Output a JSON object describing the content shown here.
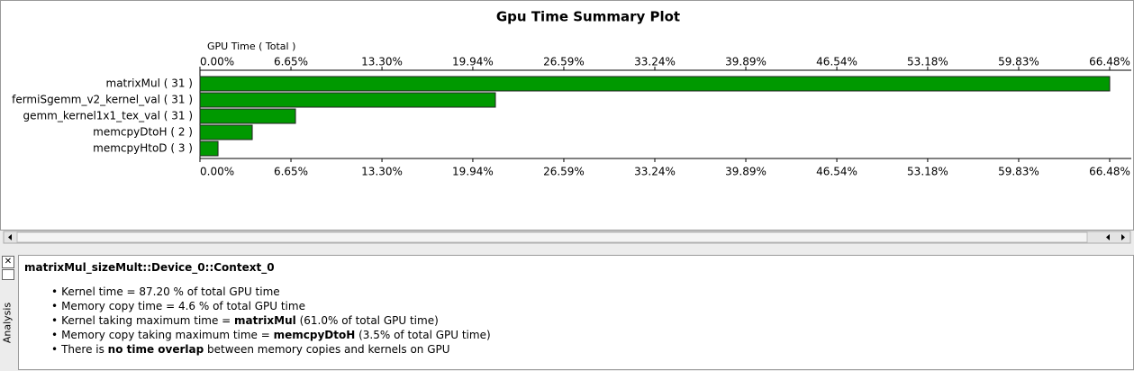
{
  "chart_data": {
    "type": "bar",
    "orientation": "horizontal",
    "title": "Gpu Time Summary Plot",
    "x_label": "GPU Time ( Total )",
    "categories": [
      "matrixMul ( 31 )",
      "fermiSgemm_v2_kernel_val ( 31 )",
      "gemm_kernel1x1_tex_val ( 31 )",
      "memcpyDtoH ( 2 )",
      "memcpyHtoD ( 3 )"
    ],
    "values": [
      66.48,
      21.59,
      6.98,
      3.82,
      1.32
    ],
    "color": "#009900",
    "xlim": [
      0,
      66.48
    ],
    "xticks": [
      {
        "value": 0,
        "label": "0.00%"
      },
      {
        "value": 6.65,
        "label": "6.65%"
      },
      {
        "value": 13.3,
        "label": "13.30%"
      },
      {
        "value": 19.94,
        "label": "19.94%"
      },
      {
        "value": 26.59,
        "label": "26.59%"
      },
      {
        "value": 33.24,
        "label": "33.24%"
      },
      {
        "value": 39.89,
        "label": "39.89%"
      },
      {
        "value": 46.54,
        "label": "46.54%"
      },
      {
        "value": 53.18,
        "label": "53.18%"
      },
      {
        "value": 59.83,
        "label": "59.83%"
      },
      {
        "value": 66.48,
        "label": "66.48%"
      }
    ],
    "grid": false
  },
  "analysis": {
    "tab": "Analysis",
    "title": "matrixMul_sizeMult::Device_0::Context_0",
    "bullets": [
      [
        "Kernel time = 87.20 % of total GPU time"
      ],
      [
        "Memory copy time = 4.6 % of total GPU time"
      ],
      [
        "Kernel taking maximum time = ",
        "matrixMul",
        " (61.0% of total GPU time)"
      ],
      [
        "Memory copy taking maximum time = ",
        "memcpyDtoH",
        " (3.5% of total GPU time)"
      ],
      [
        "There is ",
        "no time overlap",
        " between memory copies and kernels on GPU"
      ]
    ]
  }
}
